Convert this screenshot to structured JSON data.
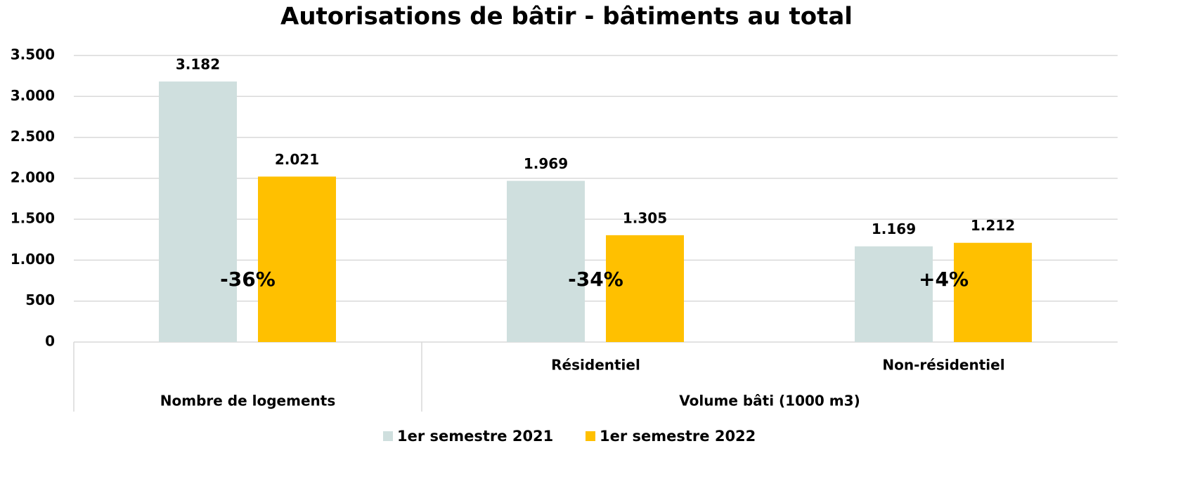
{
  "chart_data": {
    "type": "bar",
    "title": "Autorisations de bâtir - bâtiments au total",
    "categories": [
      null,
      "Résidentiel",
      "Non-résidentiel"
    ],
    "category_groups": [
      {
        "label": "Nombre de logements",
        "span": 1
      },
      {
        "label": "Volume bâti (1000 m3)",
        "span": 2
      }
    ],
    "series": [
      {
        "name": "1er semestre 2021",
        "color": "#cfdfde",
        "values": [
          3182,
          1969,
          1169
        ],
        "value_labels": [
          "3.182",
          "1.969",
          "1.169"
        ]
      },
      {
        "name": "1er semestre 2022",
        "color": "#ffc000",
        "values": [
          2021,
          1305,
          1212
        ],
        "value_labels": [
          "2.021",
          "1.305",
          "1.212"
        ]
      }
    ],
    "annotations": [
      "-36%",
      "-34%",
      "+4%"
    ],
    "ylim": [
      0,
      3500
    ],
    "yticks": [
      0,
      500,
      {
        "value": 1000,
        "label": "1.000"
      },
      {
        "value": 1500,
        "label": "1.500"
      },
      {
        "value": 2000,
        "label": "2.000"
      },
      {
        "value": 2500,
        "label": "2.500"
      },
      {
        "value": 3000,
        "label": "3.000"
      },
      {
        "value": 3500,
        "label": "3.500"
      }
    ],
    "grid": true,
    "legend": "bottom"
  }
}
